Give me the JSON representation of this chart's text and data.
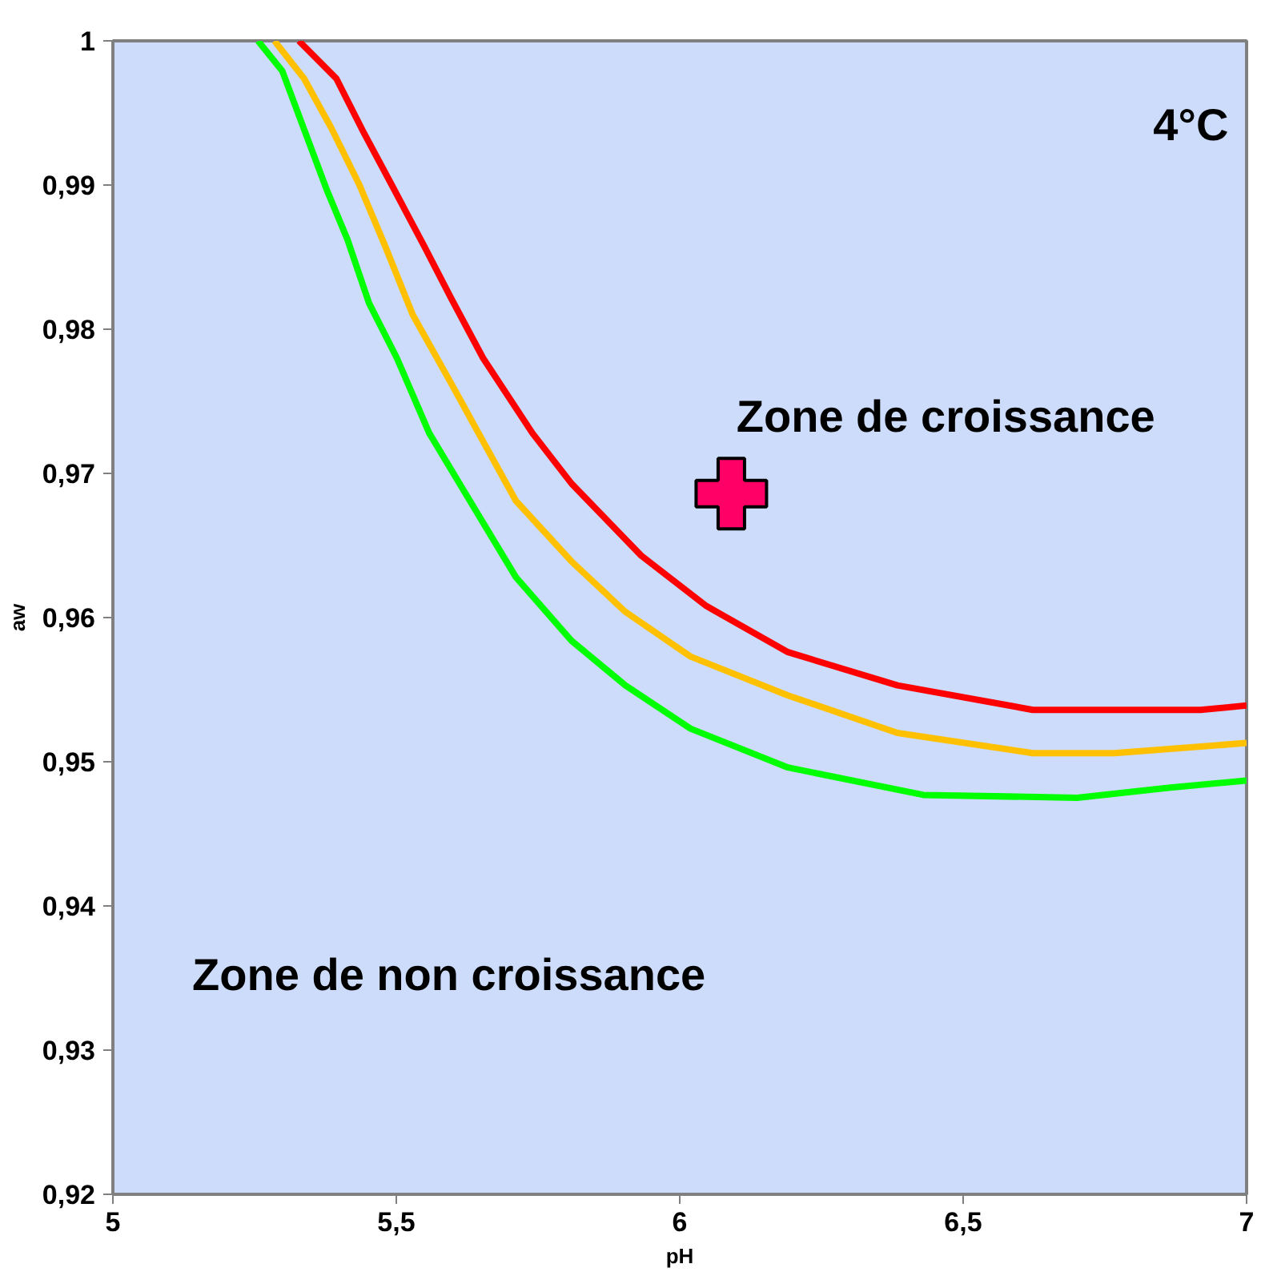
{
  "chart_data": {
    "type": "line",
    "xlabel": "pH",
    "ylabel": "aw",
    "annotations": [
      "4°C",
      "Zone de croissance",
      "Zone de non croissance"
    ],
    "xlim": [
      5,
      7
    ],
    "ylim": [
      0.92,
      1
    ],
    "xticks": [
      5,
      {
        "value": 5.5,
        "label": "5,5"
      },
      6,
      {
        "value": 6.5,
        "label": "6,5"
      },
      7
    ],
    "yticks": [
      {
        "value": 0.92,
        "label": "0,92"
      },
      {
        "value": 0.93,
        "label": "0,93"
      },
      {
        "value": 0.94,
        "label": "0,94"
      },
      {
        "value": 0.95,
        "label": "0,95"
      },
      {
        "value": 0.96,
        "label": "0,96"
      },
      {
        "value": 0.97,
        "label": "0,97"
      },
      {
        "value": 0.98,
        "label": "0,98"
      },
      {
        "value": 0.99,
        "label": "0,99"
      },
      1
    ],
    "grid": false,
    "line_style": "solid",
    "series": [
      {
        "color": "#00ff00",
        "x": [
          5.256,
          5.299,
          5.337,
          5.377,
          5.414,
          5.452,
          5.501,
          5.558,
          5.616,
          5.711,
          5.809,
          5.904,
          6.019,
          6.191,
          6.43,
          6.701,
          6.862,
          7.0
        ],
        "values": [
          1.0,
          0.9979,
          0.9939,
          0.9897,
          0.9862,
          0.9818,
          0.978,
          0.9728,
          0.969,
          0.9628,
          0.9584,
          0.9553,
          0.9523,
          0.9496,
          0.9477,
          0.9475,
          0.9482,
          0.9487
        ]
      },
      {
        "color": "#ffc000",
        "x": [
          5.285,
          5.337,
          5.386,
          5.435,
          5.481,
          5.529,
          5.596,
          5.645,
          5.711,
          5.809,
          5.904,
          6.019,
          6.191,
          6.384,
          6.623,
          6.767,
          7.0
        ],
        "values": [
          1.0,
          0.9974,
          0.9939,
          0.99,
          0.9857,
          0.981,
          0.9763,
          0.9728,
          0.9681,
          0.9639,
          0.9604,
          0.9573,
          0.9546,
          0.952,
          0.9506,
          0.9506,
          0.9513
        ]
      },
      {
        "color": "#ff0000",
        "x": [
          5.328,
          5.394,
          5.443,
          5.492,
          5.55,
          5.596,
          5.653,
          5.74,
          5.809,
          5.932,
          6.047,
          6.191,
          6.384,
          6.623,
          6.919,
          7.0
        ],
        "values": [
          1.0,
          0.9974,
          0.9936,
          0.99,
          0.9857,
          0.9822,
          0.978,
          0.9728,
          0.9693,
          0.9643,
          0.9608,
          0.9576,
          0.9553,
          0.9536,
          0.9536,
          0.9539
        ]
      },
      {
        "type": "scatter",
        "marker": "cross",
        "color": "#ff0066",
        "x": [
          6.091
        ],
        "values": [
          0.9686
        ]
      }
    ]
  }
}
